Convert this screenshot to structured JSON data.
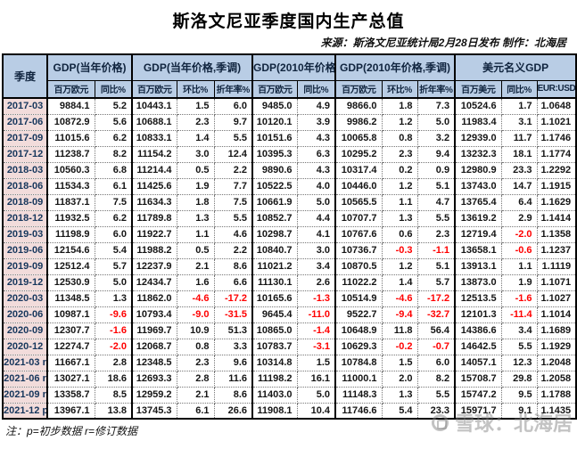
{
  "page": {
    "title": "斯洛文尼亚季度国内生产总值",
    "source_line": "来源：斯洛文尼亚统计局2月28日发布  制作：北海居",
    "footer_note": "注：p=初步数据 r=修订数据",
    "watermark_text": "雪球：北海居"
  },
  "colors": {
    "header_bg": "#B9CDE5",
    "quarter_col_bg": "#F2DCDB",
    "header_text": "#10243E",
    "data_text": "#151515",
    "negative": "#FF0000",
    "border": "#000000",
    "watermark": "#878787"
  },
  "chart_data": {
    "type": "table",
    "title": "斯洛文尼亚季度国内生产总值",
    "corner_header": "季度",
    "column_groups": [
      {
        "label": "GDP(当年价格)",
        "columns": [
          "百万欧元",
          "同比%"
        ]
      },
      {
        "label": "GDP(当年价格,季调)",
        "columns": [
          "百万欧元",
          "环比%",
          "折年率%"
        ]
      },
      {
        "label": "GDP(2010年价格)",
        "columns": [
          "百万欧元",
          "同比%"
        ]
      },
      {
        "label": "GDP(2010年价格,季调)",
        "columns": [
          "百万欧元",
          "环比%",
          "折年率%"
        ]
      },
      {
        "label": "美元名义GDP",
        "columns": [
          "百万美元",
          "同比%",
          "EUR:USD"
        ]
      }
    ],
    "rows": [
      {
        "quarter": "2017-03",
        "values": [
          "9884.1",
          "5.2",
          "10443.1",
          "1.5",
          "6.0",
          "9485.0",
          "4.9",
          "9866.0",
          "1.8",
          "7.3",
          "10524.6",
          "1.7",
          "1.0648"
        ]
      },
      {
        "quarter": "2017-06",
        "values": [
          "10872.9",
          "5.6",
          "10688.1",
          "2.3",
          "9.7",
          "10120.1",
          "3.9",
          "9986.2",
          "1.2",
          "5.0",
          "11983.4",
          "3.1",
          "1.1021"
        ]
      },
      {
        "quarter": "2017-09",
        "values": [
          "11015.6",
          "6.2",
          "10833.1",
          "1.4",
          "5.5",
          "10151.6",
          "4.3",
          "10065.8",
          "0.8",
          "3.2",
          "12939.0",
          "11.7",
          "1.1746"
        ]
      },
      {
        "quarter": "2017-12",
        "values": [
          "11238.7",
          "8.2",
          "11154.2",
          "3.0",
          "12.4",
          "10395.3",
          "6.3",
          "10295.2",
          "2.3",
          "9.4",
          "13232.3",
          "18.1",
          "1.1774"
        ]
      },
      {
        "quarter": "2018-03",
        "values": [
          "10560.3",
          "6.8",
          "11214.4",
          "0.5",
          "2.2",
          "9890.6",
          "4.3",
          "10317.4",
          "0.2",
          "0.9",
          "12980.9",
          "23.3",
          "1.2292"
        ]
      },
      {
        "quarter": "2018-06",
        "values": [
          "11534.3",
          "6.1",
          "11425.6",
          "1.9",
          "7.7",
          "10522.5",
          "4.0",
          "10446.0",
          "1.2",
          "5.1",
          "13743.0",
          "14.7",
          "1.1915"
        ]
      },
      {
        "quarter": "2018-09",
        "values": [
          "11837.1",
          "7.5",
          "11634.3",
          "1.8",
          "7.5",
          "10661.9",
          "5.0",
          "10565.5",
          "1.1",
          "4.7",
          "13765.4",
          "6.4",
          "1.1629"
        ]
      },
      {
        "quarter": "2018-12",
        "values": [
          "11932.5",
          "6.2",
          "11789.8",
          "1.3",
          "5.5",
          "10852.7",
          "4.4",
          "10707.7",
          "1.3",
          "5.5",
          "13619.2",
          "2.9",
          "1.1414"
        ]
      },
      {
        "quarter": "2019-03",
        "values": [
          "11198.9",
          "6.0",
          "11922.7",
          "1.1",
          "4.6",
          "10298.7",
          "4.1",
          "10767.6",
          "0.6",
          "2.3",
          "12719.4",
          "-2.0",
          "1.1358"
        ]
      },
      {
        "quarter": "2019-06",
        "values": [
          "12154.6",
          "5.4",
          "11988.2",
          "0.5",
          "2.2",
          "10840.7",
          "3.0",
          "10736.7",
          "-0.3",
          "-1.1",
          "13658.1",
          "-0.6",
          "1.1237"
        ]
      },
      {
        "quarter": "2019-09",
        "values": [
          "12512.4",
          "5.7",
          "12237.9",
          "2.1",
          "8.6",
          "11021.2",
          "3.4",
          "10870.5",
          "1.2",
          "5.1",
          "13913.1",
          "1.1",
          "1.1119"
        ]
      },
      {
        "quarter": "2019-12",
        "values": [
          "12530.9",
          "5.0",
          "12434.7",
          "1.6",
          "6.6",
          "11130.1",
          "2.6",
          "11022.2",
          "1.4",
          "5.7",
          "13873.0",
          "1.9",
          "1.1071"
        ]
      },
      {
        "quarter": "2020-03",
        "values": [
          "11348.5",
          "1.3",
          "11862.0",
          "-4.6",
          "-17.2",
          "10165.6",
          "-1.3",
          "10514.9",
          "-4.6",
          "-17.2",
          "12513.5",
          "-1.6",
          "1.1027"
        ]
      },
      {
        "quarter": "2020-06",
        "values": [
          "10987.1",
          "-9.6",
          "10793.4",
          "-9.0",
          "-31.5",
          "9645.4",
          "-11.0",
          "9522.7",
          "-9.4",
          "-32.7",
          "12101.3",
          "-11.4",
          "1.1014"
        ]
      },
      {
        "quarter": "2020-09",
        "values": [
          "12307.7",
          "-1.6",
          "11969.7",
          "10.9",
          "51.3",
          "10865.0",
          "-1.4",
          "10648.9",
          "11.8",
          "56.4",
          "14386.6",
          "3.4",
          "1.1689"
        ]
      },
      {
        "quarter": "2020-12",
        "values": [
          "12274.7",
          "-2.0",
          "12068.7",
          "0.8",
          "3.3",
          "10783.7",
          "-3.1",
          "10629.3",
          "-0.2",
          "-0.7",
          "14642.5",
          "5.5",
          "1.1929"
        ]
      },
      {
        "quarter": "2021-03 r",
        "values": [
          "11667.1",
          "2.8",
          "12348.5",
          "2.3",
          "9.6",
          "10314.8",
          "1.5",
          "10784.8",
          "1.5",
          "6.0",
          "14057.1",
          "12.3",
          "1.2048"
        ]
      },
      {
        "quarter": "2021-06 r",
        "values": [
          "13027.1",
          "18.6",
          "12693.3",
          "2.8",
          "11.6",
          "11198.2",
          "16.1",
          "11000.1",
          "2.0",
          "8.2",
          "15708.7",
          "29.8",
          "1.2058"
        ]
      },
      {
        "quarter": "2021-09 r",
        "values": [
          "13358.7",
          "8.5",
          "12959.2",
          "2.1",
          "8.6",
          "11403.0",
          "5.0",
          "11148.3",
          "1.3",
          "5.5",
          "15747.2",
          "9.5",
          "1.1788"
        ]
      },
      {
        "quarter": "2021-12 p",
        "values": [
          "13967.1",
          "13.8",
          "13745.3",
          "6.1",
          "26.6",
          "11908.1",
          "10.4",
          "11746.6",
          "5.4",
          "23.3",
          "15971.7",
          "9.1",
          "1.1435"
        ]
      }
    ]
  }
}
